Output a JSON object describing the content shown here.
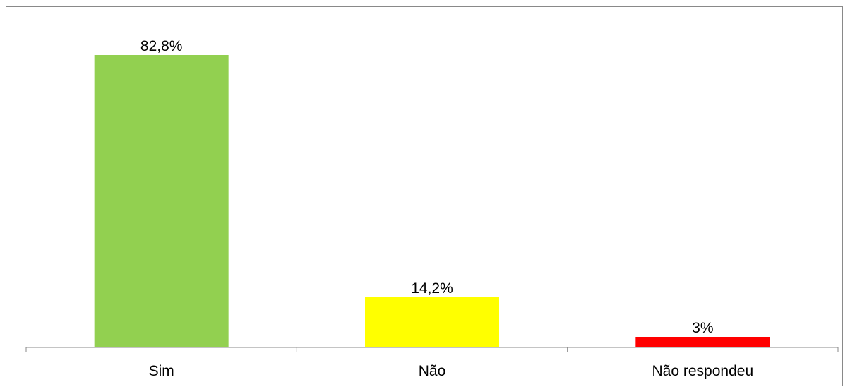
{
  "chart_data": {
    "type": "bar",
    "title": "",
    "xlabel": "",
    "ylabel": "",
    "categories": [
      "Sim",
      "Não",
      "Não respondeu"
    ],
    "values": [
      82.8,
      14.2,
      3
    ],
    "data_labels": [
      "82,8%",
      "14,2%",
      "3%"
    ],
    "colors": [
      "#92d050",
      "#ffff00",
      "#ff0000"
    ],
    "axis_color": "#898989",
    "ylim": [
      0,
      100
    ],
    "grid": false,
    "legend": "none"
  }
}
